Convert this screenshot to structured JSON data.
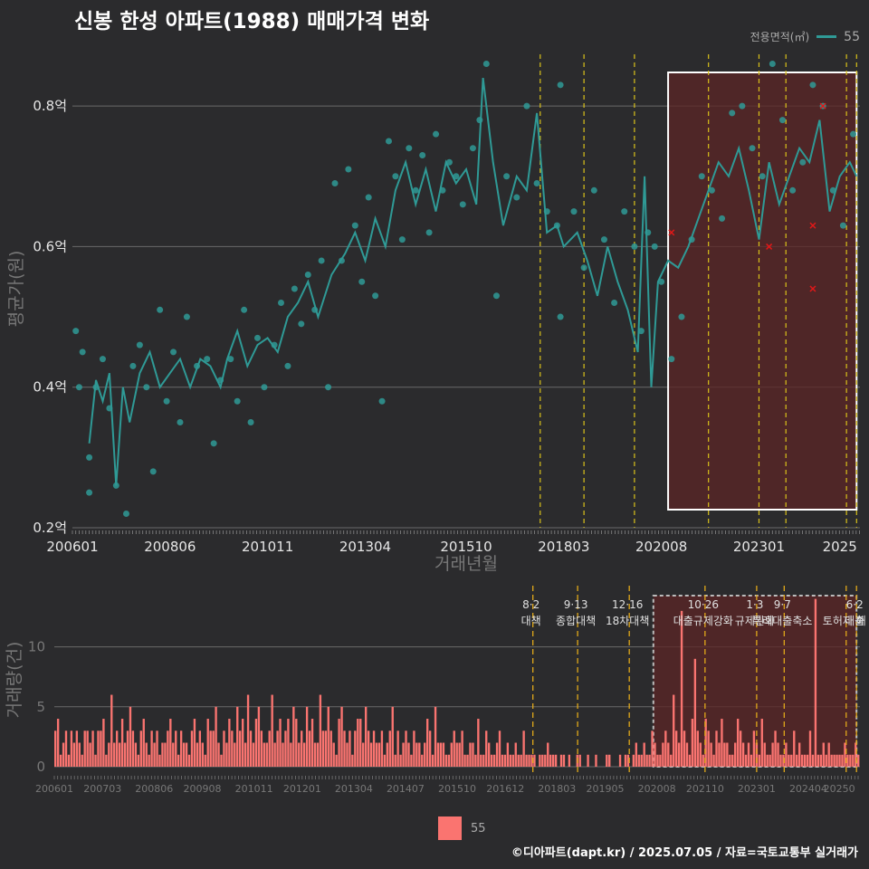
{
  "title": "신봉 한성 아파트(1988) 매매가격 변화",
  "legend": {
    "title": "전용면적(㎡)",
    "series_name": "55",
    "line_color": "#2f9a96",
    "bar_color": "#fa7470"
  },
  "credit": "©디아파트(dapt.kr) / 2025.07.05 / 자료=국토교통부 실거래가",
  "chart_data": [
    {
      "type": "line",
      "ylabel": "평균가(원)",
      "xlabel": "거래년월",
      "ylim": [
        0.2,
        0.88
      ],
      "yticks": [
        0.2,
        0.4,
        0.6,
        0.8
      ],
      "ytick_labels": [
        "0.2억",
        "0.4억",
        "0.6억",
        "0.8억"
      ],
      "xticks": [
        "200601",
        "200806",
        "201011",
        "201304",
        "201510",
        "201803",
        "202008",
        "202301",
        "2025"
      ],
      "x_range": [
        "2006-01",
        "2025-07"
      ],
      "series": [
        {
          "name": "55",
          "line": [
            [
              "2006-06",
              0.32
            ],
            [
              "2006-08",
              0.41
            ],
            [
              "2006-10",
              0.38
            ],
            [
              "2006-12",
              0.42
            ],
            [
              "2007-02",
              0.26
            ],
            [
              "2007-04",
              0.4
            ],
            [
              "2007-06",
              0.35
            ],
            [
              "2007-09",
              0.42
            ],
            [
              "2007-12",
              0.45
            ],
            [
              "2008-03",
              0.4
            ],
            [
              "2008-06",
              0.42
            ],
            [
              "2008-09",
              0.44
            ],
            [
              "2008-12",
              0.4
            ],
            [
              "2009-03",
              0.44
            ],
            [
              "2009-06",
              0.43
            ],
            [
              "2009-09",
              0.4
            ],
            [
              "2009-11",
              0.44
            ],
            [
              "2010-02",
              0.48
            ],
            [
              "2010-05",
              0.43
            ],
            [
              "2010-08",
              0.46
            ],
            [
              "2010-11",
              0.47
            ],
            [
              "2011-02",
              0.45
            ],
            [
              "2011-05",
              0.5
            ],
            [
              "2011-08",
              0.52
            ],
            [
              "2011-11",
              0.55
            ],
            [
              "2012-02",
              0.5
            ],
            [
              "2012-06",
              0.56
            ],
            [
              "2012-10",
              0.59
            ],
            [
              "2013-01",
              0.62
            ],
            [
              "2013-04",
              0.58
            ],
            [
              "2013-07",
              0.64
            ],
            [
              "2013-10",
              0.6
            ],
            [
              "2014-01",
              0.68
            ],
            [
              "2014-04",
              0.72
            ],
            [
              "2014-07",
              0.66
            ],
            [
              "2014-10",
              0.71
            ],
            [
              "2015-01",
              0.65
            ],
            [
              "2015-04",
              0.72
            ],
            [
              "2015-07",
              0.69
            ],
            [
              "2015-10",
              0.71
            ],
            [
              "2016-01",
              0.66
            ],
            [
              "2016-03",
              0.84
            ],
            [
              "2016-06",
              0.72
            ],
            [
              "2016-09",
              0.63
            ],
            [
              "2017-01",
              0.7
            ],
            [
              "2017-04",
              0.68
            ],
            [
              "2017-07",
              0.79
            ],
            [
              "2017-10",
              0.62
            ],
            [
              "2018-01",
              0.63
            ],
            [
              "2018-03",
              0.6
            ],
            [
              "2018-07",
              0.62
            ],
            [
              "2018-10",
              0.58
            ],
            [
              "2019-01",
              0.53
            ],
            [
              "2019-04",
              0.6
            ],
            [
              "2019-07",
              0.55
            ],
            [
              "2019-10",
              0.51
            ],
            [
              "2020-01",
              0.45
            ],
            [
              "2020-03",
              0.7
            ],
            [
              "2020-05",
              0.4
            ],
            [
              "2020-07",
              0.55
            ],
            [
              "2020-10",
              0.58
            ],
            [
              "2021-01",
              0.57
            ],
            [
              "2021-04",
              0.6
            ],
            [
              "2021-07",
              0.64
            ],
            [
              "2021-10",
              0.68
            ],
            [
              "2022-01",
              0.72
            ],
            [
              "2022-04",
              0.7
            ],
            [
              "2022-07",
              0.74
            ],
            [
              "2022-10",
              0.68
            ],
            [
              "2023-01",
              0.61
            ],
            [
              "2023-04",
              0.72
            ],
            [
              "2023-07",
              0.66
            ],
            [
              "2023-10",
              0.7
            ],
            [
              "2024-01",
              0.74
            ],
            [
              "2024-04",
              0.72
            ],
            [
              "2024-07",
              0.78
            ],
            [
              "2024-10",
              0.65
            ],
            [
              "2025-01",
              0.7
            ],
            [
              "2025-04",
              0.72
            ],
            [
              "2025-06",
              0.7
            ]
          ],
          "points": [
            [
              "2006-02",
              0.48
            ],
            [
              "2006-03",
              0.4
            ],
            [
              "2006-04",
              0.45
            ],
            [
              "2006-06",
              0.25
            ],
            [
              "2006-06",
              0.3
            ],
            [
              "2006-08",
              0.4
            ],
            [
              "2006-10",
              0.44
            ],
            [
              "2006-12",
              0.37
            ],
            [
              "2007-02",
              0.26
            ],
            [
              "2007-05",
              0.22
            ],
            [
              "2007-07",
              0.43
            ],
            [
              "2007-09",
              0.46
            ],
            [
              "2007-11",
              0.4
            ],
            [
              "2008-01",
              0.28
            ],
            [
              "2008-03",
              0.51
            ],
            [
              "2008-05",
              0.38
            ],
            [
              "2008-07",
              0.45
            ],
            [
              "2008-09",
              0.35
            ],
            [
              "2008-11",
              0.5
            ],
            [
              "2009-02",
              0.43
            ],
            [
              "2009-05",
              0.44
            ],
            [
              "2009-07",
              0.32
            ],
            [
              "2009-09",
              0.41
            ],
            [
              "2009-12",
              0.44
            ],
            [
              "2010-02",
              0.38
            ],
            [
              "2010-04",
              0.51
            ],
            [
              "2010-06",
              0.35
            ],
            [
              "2010-08",
              0.47
            ],
            [
              "2010-10",
              0.4
            ],
            [
              "2011-01",
              0.46
            ],
            [
              "2011-03",
              0.52
            ],
            [
              "2011-05",
              0.43
            ],
            [
              "2011-07",
              0.54
            ],
            [
              "2011-09",
              0.49
            ],
            [
              "2011-11",
              0.56
            ],
            [
              "2012-01",
              0.51
            ],
            [
              "2012-03",
              0.58
            ],
            [
              "2012-05",
              0.4
            ],
            [
              "2012-07",
              0.69
            ],
            [
              "2012-09",
              0.58
            ],
            [
              "2012-11",
              0.71
            ],
            [
              "2013-01",
              0.63
            ],
            [
              "2013-03",
              0.55
            ],
            [
              "2013-05",
              0.67
            ],
            [
              "2013-07",
              0.53
            ],
            [
              "2013-09",
              0.38
            ],
            [
              "2013-11",
              0.75
            ],
            [
              "2014-01",
              0.7
            ],
            [
              "2014-03",
              0.61
            ],
            [
              "2014-05",
              0.74
            ],
            [
              "2014-07",
              0.68
            ],
            [
              "2014-09",
              0.73
            ],
            [
              "2014-11",
              0.62
            ],
            [
              "2015-01",
              0.76
            ],
            [
              "2015-03",
              0.68
            ],
            [
              "2015-05",
              0.72
            ],
            [
              "2015-07",
              0.7
            ],
            [
              "2015-09",
              0.66
            ],
            [
              "2015-12",
              0.74
            ],
            [
              "2016-02",
              0.78
            ],
            [
              "2016-04",
              0.86
            ],
            [
              "2016-07",
              0.53
            ],
            [
              "2016-10",
              0.7
            ],
            [
              "2017-01",
              0.67
            ],
            [
              "2017-04",
              0.8
            ],
            [
              "2017-07",
              0.69
            ],
            [
              "2017-10",
              0.65
            ],
            [
              "2018-01",
              0.63
            ],
            [
              "2018-02",
              0.5
            ],
            [
              "2018-02",
              0.83
            ],
            [
              "2018-06",
              0.65
            ],
            [
              "2018-09",
              0.57
            ],
            [
              "2018-12",
              0.68
            ],
            [
              "2019-03",
              0.61
            ],
            [
              "2019-06",
              0.52
            ],
            [
              "2019-09",
              0.65
            ],
            [
              "2019-12",
              0.6
            ],
            [
              "2020-02",
              0.48
            ],
            [
              "2020-04",
              0.62
            ],
            [
              "2020-06",
              0.6
            ],
            [
              "2020-08",
              0.55
            ],
            [
              "2020-11",
              0.44
            ],
            [
              "2021-02",
              0.5
            ],
            [
              "2021-05",
              0.61
            ],
            [
              "2021-08",
              0.7
            ],
            [
              "2021-11",
              0.68
            ],
            [
              "2022-02",
              0.64
            ],
            [
              "2022-05",
              0.79
            ],
            [
              "2022-08",
              0.8
            ],
            [
              "2022-11",
              0.74
            ],
            [
              "2023-02",
              0.7
            ],
            [
              "2023-05",
              0.86
            ],
            [
              "2023-08",
              0.78
            ],
            [
              "2023-11",
              0.68
            ],
            [
              "2024-02",
              0.72
            ],
            [
              "2024-05",
              0.83
            ],
            [
              "2024-08",
              0.8
            ],
            [
              "2024-11",
              0.68
            ],
            [
              "2025-02",
              0.63
            ],
            [
              "2025-05",
              0.76
            ]
          ]
        }
      ],
      "outliers": [
        [
          "2020-11",
          0.62
        ],
        [
          "2023-04",
          0.6
        ],
        [
          "2024-05",
          0.63
        ],
        [
          "2024-05",
          0.54
        ],
        [
          "2024-08",
          0.8
        ]
      ],
      "highlight_region": [
        "2020-10",
        "2025-06"
      ],
      "policy_lines": [
        "2017-08",
        "2018-09",
        "2019-12",
        "2021-10",
        "2023-01",
        "2023-09",
        "2025-03",
        "2025-06"
      ]
    },
    {
      "type": "bar",
      "ylabel": "거래량(건)",
      "ylim": [
        0,
        14.5
      ],
      "yticks": [
        0,
        5,
        10
      ],
      "xticks": [
        "200601",
        "200703",
        "200806",
        "200908",
        "201011",
        "201201",
        "201304",
        "201407",
        "201510",
        "201612",
        "201803",
        "201905",
        "202008",
        "202110",
        "202301",
        "202404",
        "20250"
      ],
      "x_range": [
        "2006-01",
        "2025-07"
      ],
      "series_name": "55",
      "monthly_volume": [
        3,
        4,
        1,
        2,
        3,
        1,
        3,
        2,
        3,
        2,
        1,
        3,
        3,
        2,
        3,
        1,
        3,
        3,
        4,
        1,
        2,
        6,
        2,
        3,
        2,
        4,
        2,
        3,
        5,
        3,
        2,
        1,
        3,
        4,
        2,
        1,
        3,
        2,
        3,
        1,
        2,
        2,
        3,
        4,
        2,
        3,
        1,
        3,
        2,
        2,
        1,
        3,
        4,
        2,
        3,
        2,
        1,
        4,
        3,
        3,
        5,
        2,
        1,
        3,
        2,
        4,
        3,
        2,
        5,
        3,
        4,
        2,
        6,
        3,
        2,
        4,
        5,
        3,
        2,
        2,
        3,
        6,
        2,
        3,
        4,
        2,
        3,
        4,
        2,
        5,
        4,
        2,
        3,
        2,
        5,
        3,
        4,
        2,
        2,
        6,
        3,
        3,
        5,
        3,
        2,
        1,
        4,
        5,
        3,
        2,
        3,
        1,
        3,
        4,
        4,
        2,
        5,
        3,
        2,
        3,
        2,
        2,
        3,
        1,
        2,
        3,
        5,
        1,
        3,
        1,
        2,
        3,
        2,
        1,
        3,
        2,
        2,
        1,
        2,
        4,
        3,
        1,
        5,
        2,
        2,
        2,
        1,
        1,
        2,
        3,
        2,
        2,
        3,
        1,
        1,
        2,
        2,
        1,
        4,
        1,
        1,
        3,
        2,
        1,
        1,
        2,
        3,
        1,
        1,
        2,
        1,
        1,
        2,
        1,
        1,
        3,
        1,
        1,
        1,
        1,
        0,
        1,
        1,
        1,
        2,
        1,
        1,
        1,
        0,
        1,
        1,
        0,
        1,
        0,
        0,
        1,
        1,
        0,
        0,
        1,
        0,
        0,
        1,
        0,
        0,
        0,
        1,
        1,
        0,
        0,
        0,
        1,
        0,
        1,
        1,
        0,
        1,
        2,
        1,
        1,
        2,
        1,
        1,
        3,
        2,
        1,
        1,
        2,
        3,
        2,
        1,
        6,
        3,
        2,
        13,
        3,
        2,
        1,
        4,
        9,
        3,
        2,
        1,
        4,
        3,
        2,
        1,
        3,
        2,
        4,
        2,
        2,
        1,
        1,
        2,
        4,
        3,
        2,
        1,
        2,
        1,
        3,
        2,
        1,
        4,
        2,
        1,
        1,
        2,
        3,
        2,
        1,
        1,
        2,
        1,
        1,
        3,
        1,
        2,
        1,
        1,
        1,
        3,
        1,
        14,
        1,
        1,
        2,
        1,
        2,
        1,
        1,
        1,
        1,
        1,
        2,
        1,
        1,
        1,
        2,
        1
      ],
      "highlight_region": [
        "2020-07",
        "2025-06"
      ],
      "policy_events": [
        {
          "date": "2017-08",
          "label_top": "8·2",
          "label_bottom": "대책"
        },
        {
          "date": "2018-09",
          "label_top": "9·13",
          "label_bottom": "종합대책"
        },
        {
          "date": "2019-12",
          "label_top": "12·16",
          "label_bottom": "18차대책"
        },
        {
          "date": "2021-10",
          "label_top": "10·26",
          "label_bottom": "대출규제강화"
        },
        {
          "date": "2023-01",
          "label_top": "1·3",
          "label_bottom": "규제완화"
        },
        {
          "date": "2023-09",
          "label_top": "9·7",
          "label_bottom": "특례대출축소"
        },
        {
          "date": "2025-03",
          "label_top": "",
          "label_bottom": "토허제 해"
        },
        {
          "date": "2025-06",
          "label_top": "6·2",
          "label_bottom": "대출"
        }
      ]
    }
  ]
}
